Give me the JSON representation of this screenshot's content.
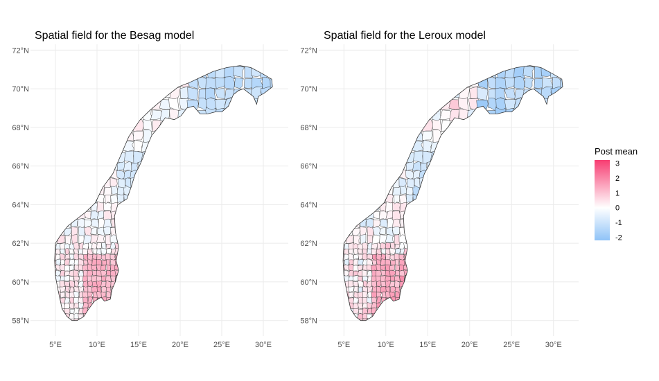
{
  "panels": [
    {
      "title": "Spatial field for the Besag model",
      "x_ticks": [
        "5°E",
        "10°E",
        "15°E",
        "20°E",
        "25°E",
        "30°E"
      ],
      "y_ticks": [
        "72°N",
        "70°N",
        "68°N",
        "66°N",
        "64°N",
        "62°N",
        "60°N",
        "58°N"
      ],
      "x_range": [
        2,
        33
      ],
      "y_range": [
        57.2,
        72.3
      ]
    },
    {
      "title": "Spatial field for the Leroux model",
      "x_ticks": [
        "5°E",
        "10°E",
        "15°E",
        "20°E",
        "25°E",
        "30°E"
      ],
      "y_ticks": [
        "72°N",
        "70°N",
        "68°N",
        "66°N",
        "64°N",
        "62°N",
        "60°N",
        "58°N"
      ],
      "x_range": [
        2,
        33
      ],
      "y_range": [
        57.2,
        72.3
      ]
    }
  ],
  "legend": {
    "title": "Post mean",
    "breaks": [
      "3",
      "2",
      "1",
      "0",
      "-1",
      "-2"
    ],
    "scale_min": -2.2,
    "scale_max": 3.2,
    "color_low": "#8fc3f7",
    "color_mid": "#ffffff",
    "color_high": "#f73d72"
  },
  "colors": {
    "grid": "#ebebeb",
    "border": "#333333"
  }
}
